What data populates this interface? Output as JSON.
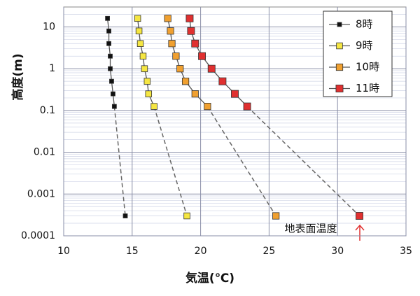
{
  "chart_data": {
    "type": "line",
    "y_label": "高度(m)",
    "x_label": "気温(℃)",
    "y": [
      16,
      8,
      4,
      2,
      1,
      0.5,
      0.25,
      0.125,
      0.0003
    ],
    "series": [
      {
        "name": "8時",
        "color": "#111111",
        "values": [
          13.2,
          13.3,
          13.3,
          13.4,
          13.4,
          13.5,
          13.6,
          13.7,
          14.5
        ]
      },
      {
        "name": "9時",
        "color": "#f5e642",
        "values": [
          15.4,
          15.5,
          15.6,
          15.8,
          15.9,
          16.1,
          16.2,
          16.6,
          19.0
        ]
      },
      {
        "name": "10時",
        "color": "#f0a030",
        "values": [
          17.6,
          17.8,
          17.9,
          18.2,
          18.5,
          18.9,
          19.6,
          20.5,
          25.5
        ]
      },
      {
        "name": "11時",
        "color": "#e03030",
        "values": [
          19.2,
          19.3,
          19.6,
          20.1,
          20.8,
          21.6,
          22.5,
          23.4,
          31.6
        ]
      }
    ],
    "xlim": [
      10,
      35
    ],
    "xticks": [
      10,
      15,
      20,
      25,
      30,
      35
    ],
    "ylim": [
      0.0001,
      30
    ],
    "yticks": [
      10,
      1,
      0.1,
      0.01,
      0.001,
      0.0001
    ],
    "ylog": true,
    "grid": true,
    "legend": "upper right",
    "annotation": "地表面温度"
  }
}
